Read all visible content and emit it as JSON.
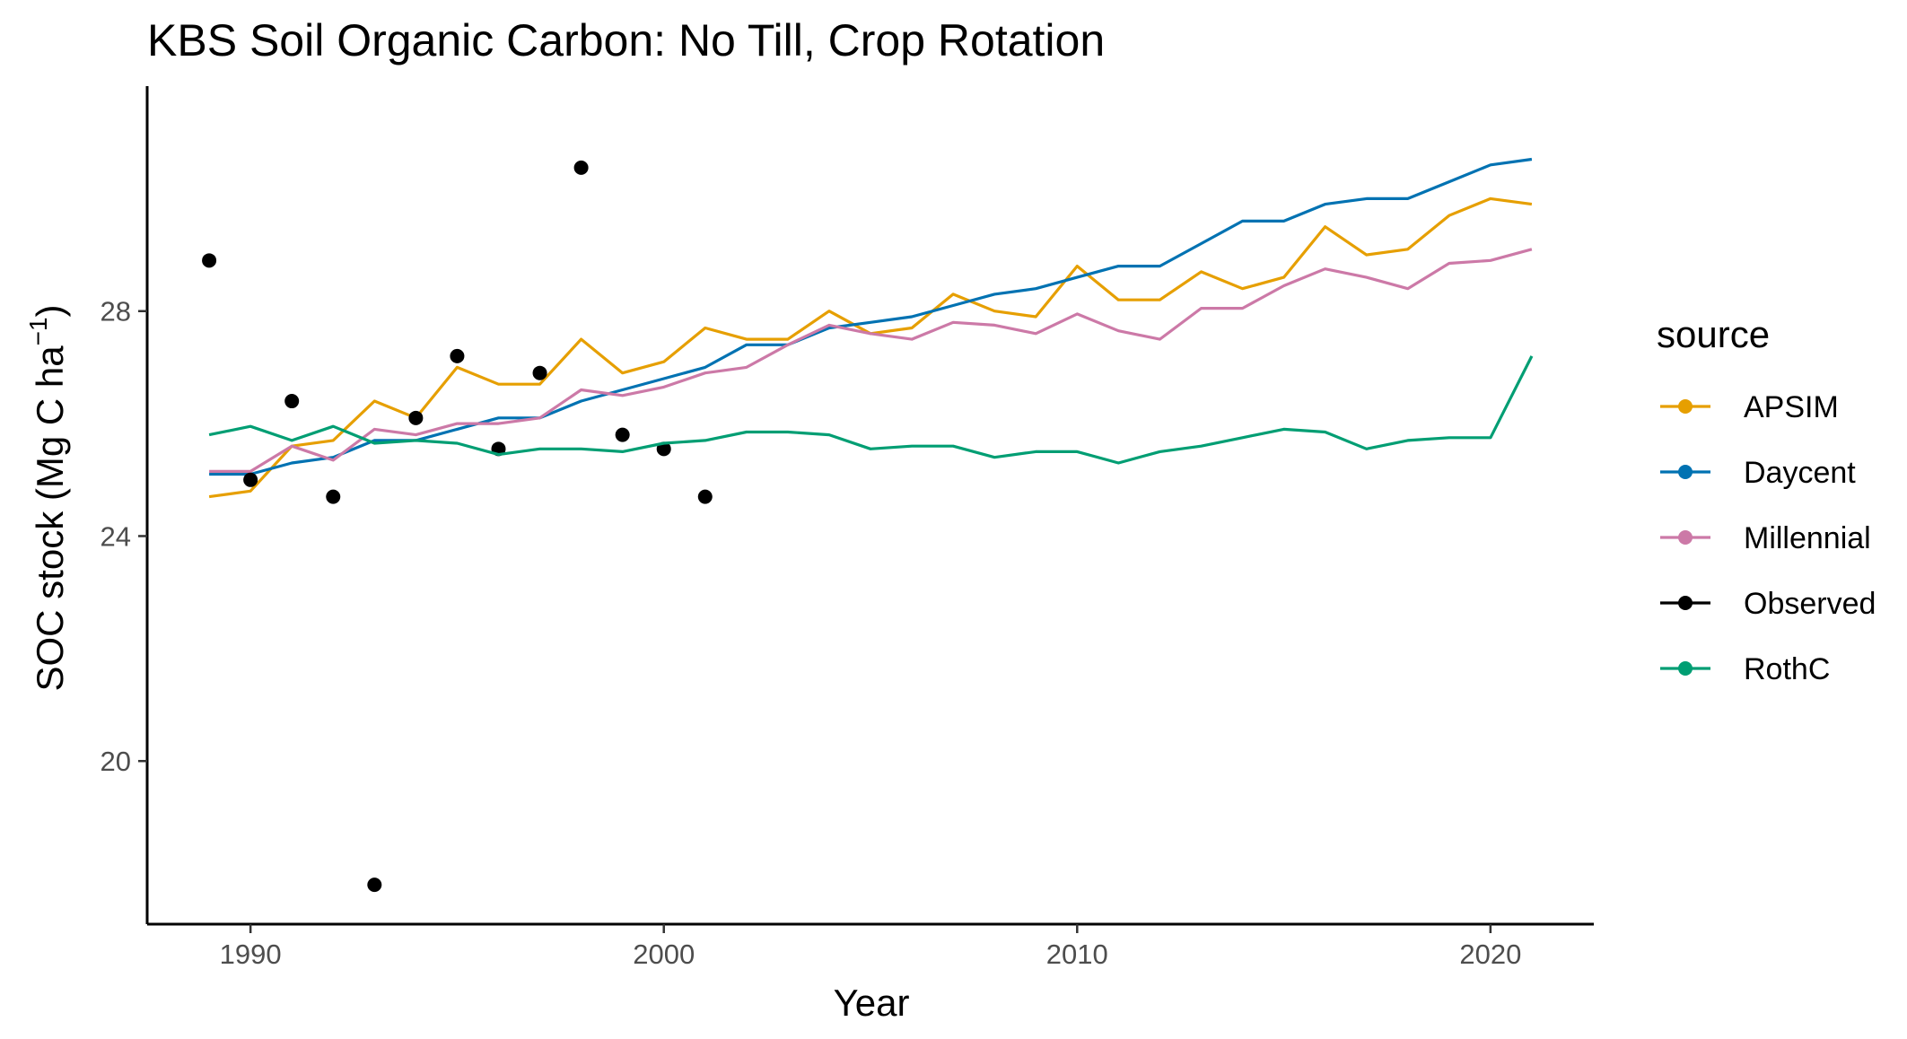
{
  "chart_data": {
    "type": "line",
    "title": "KBS Soil Organic Carbon:  No Till, Crop Rotation",
    "xlabel": "Year",
    "ylabel_main": "SOC stock (Mg C ha",
    "ylabel_sup": "−1",
    "ylabel_close": ")",
    "xlim": [
      1987.5,
      2022.5
    ],
    "ylim": [
      17.1,
      32.0
    ],
    "x_ticks": [
      1990,
      2000,
      2010,
      2020
    ],
    "y_ticks": [
      20,
      24,
      28
    ],
    "grid": false,
    "legend_position": "right",
    "legend_title": "source",
    "series": [
      {
        "name": "APSIM",
        "color": "#E69F00",
        "kind": "line",
        "x": [
          1989,
          1990,
          1991,
          1992,
          1993,
          1994,
          1995,
          1996,
          1997,
          1998,
          1999,
          2000,
          2001,
          2002,
          2003,
          2004,
          2005,
          2006,
          2007,
          2008,
          2009,
          2010,
          2011,
          2012,
          2013,
          2014,
          2015,
          2016,
          2017,
          2018,
          2019,
          2020,
          2021
        ],
        "y": [
          24.7,
          24.8,
          25.6,
          25.7,
          26.4,
          26.1,
          27.0,
          26.7,
          26.7,
          27.5,
          26.9,
          27.1,
          27.7,
          27.5,
          27.5,
          28.0,
          27.6,
          27.7,
          28.3,
          28.0,
          27.9,
          28.8,
          28.2,
          28.2,
          28.7,
          28.4,
          28.6,
          29.5,
          29.0,
          29.1,
          29.7,
          30.0,
          29.9
        ]
      },
      {
        "name": "Daycent",
        "color": "#0072B2",
        "kind": "line",
        "x": [
          1989,
          1990,
          1991,
          1992,
          1993,
          1994,
          1995,
          1996,
          1997,
          1998,
          1999,
          2000,
          2001,
          2002,
          2003,
          2004,
          2005,
          2006,
          2007,
          2008,
          2009,
          2010,
          2011,
          2012,
          2013,
          2014,
          2015,
          2016,
          2017,
          2018,
          2019,
          2020,
          2021
        ],
        "y": [
          25.1,
          25.1,
          25.3,
          25.4,
          25.7,
          25.7,
          25.9,
          26.1,
          26.1,
          26.4,
          26.6,
          26.8,
          27.0,
          27.4,
          27.4,
          27.7,
          27.8,
          27.9,
          28.1,
          28.3,
          28.4,
          28.6,
          28.8,
          28.8,
          29.2,
          29.6,
          29.6,
          29.9,
          30.0,
          30.0,
          30.3,
          30.6,
          30.7
        ]
      },
      {
        "name": "Millennial",
        "color": "#CC79A7",
        "kind": "line",
        "x": [
          1989,
          1990,
          1991,
          1992,
          1993,
          1994,
          1995,
          1996,
          1997,
          1998,
          1999,
          2000,
          2001,
          2002,
          2003,
          2004,
          2005,
          2006,
          2007,
          2008,
          2009,
          2010,
          2011,
          2012,
          2013,
          2014,
          2015,
          2016,
          2017,
          2018,
          2019,
          2020,
          2021
        ],
        "y": [
          25.15,
          25.15,
          25.6,
          25.35,
          25.9,
          25.8,
          26.0,
          26.0,
          26.1,
          26.6,
          26.5,
          26.65,
          26.9,
          27.0,
          27.4,
          27.75,
          27.6,
          27.5,
          27.8,
          27.75,
          27.6,
          27.95,
          27.65,
          27.5,
          28.05,
          28.05,
          28.45,
          28.75,
          28.6,
          28.4,
          28.85,
          28.9,
          29.1
        ]
      },
      {
        "name": "Observed",
        "color": "#000000",
        "kind": "points",
        "x": [
          1989,
          1990,
          1991,
          1992,
          1993,
          1994,
          1995,
          1996,
          1997,
          1998,
          1999,
          2000,
          2001
        ],
        "y": [
          28.9,
          25.0,
          26.4,
          24.7,
          17.8,
          26.1,
          27.2,
          25.55,
          26.9,
          30.55,
          25.8,
          25.55,
          24.7
        ]
      },
      {
        "name": "RothC",
        "color": "#009E73",
        "kind": "line",
        "x": [
          1989,
          1990,
          1991,
          1992,
          1993,
          1994,
          1995,
          1996,
          1997,
          1998,
          1999,
          2000,
          2001,
          2002,
          2003,
          2004,
          2005,
          2006,
          2007,
          2008,
          2009,
          2010,
          2011,
          2012,
          2013,
          2014,
          2015,
          2016,
          2017,
          2018,
          2019,
          2020,
          2021
        ],
        "y": [
          25.8,
          25.95,
          25.7,
          25.95,
          25.65,
          25.7,
          25.65,
          25.45,
          25.55,
          25.55,
          25.5,
          25.65,
          25.7,
          25.85,
          25.85,
          25.8,
          25.55,
          25.6,
          25.6,
          25.4,
          25.5,
          25.5,
          25.3,
          25.5,
          25.6,
          25.75,
          25.9,
          25.85,
          25.55,
          25.7,
          25.75,
          25.75,
          27.2
        ]
      }
    ]
  }
}
